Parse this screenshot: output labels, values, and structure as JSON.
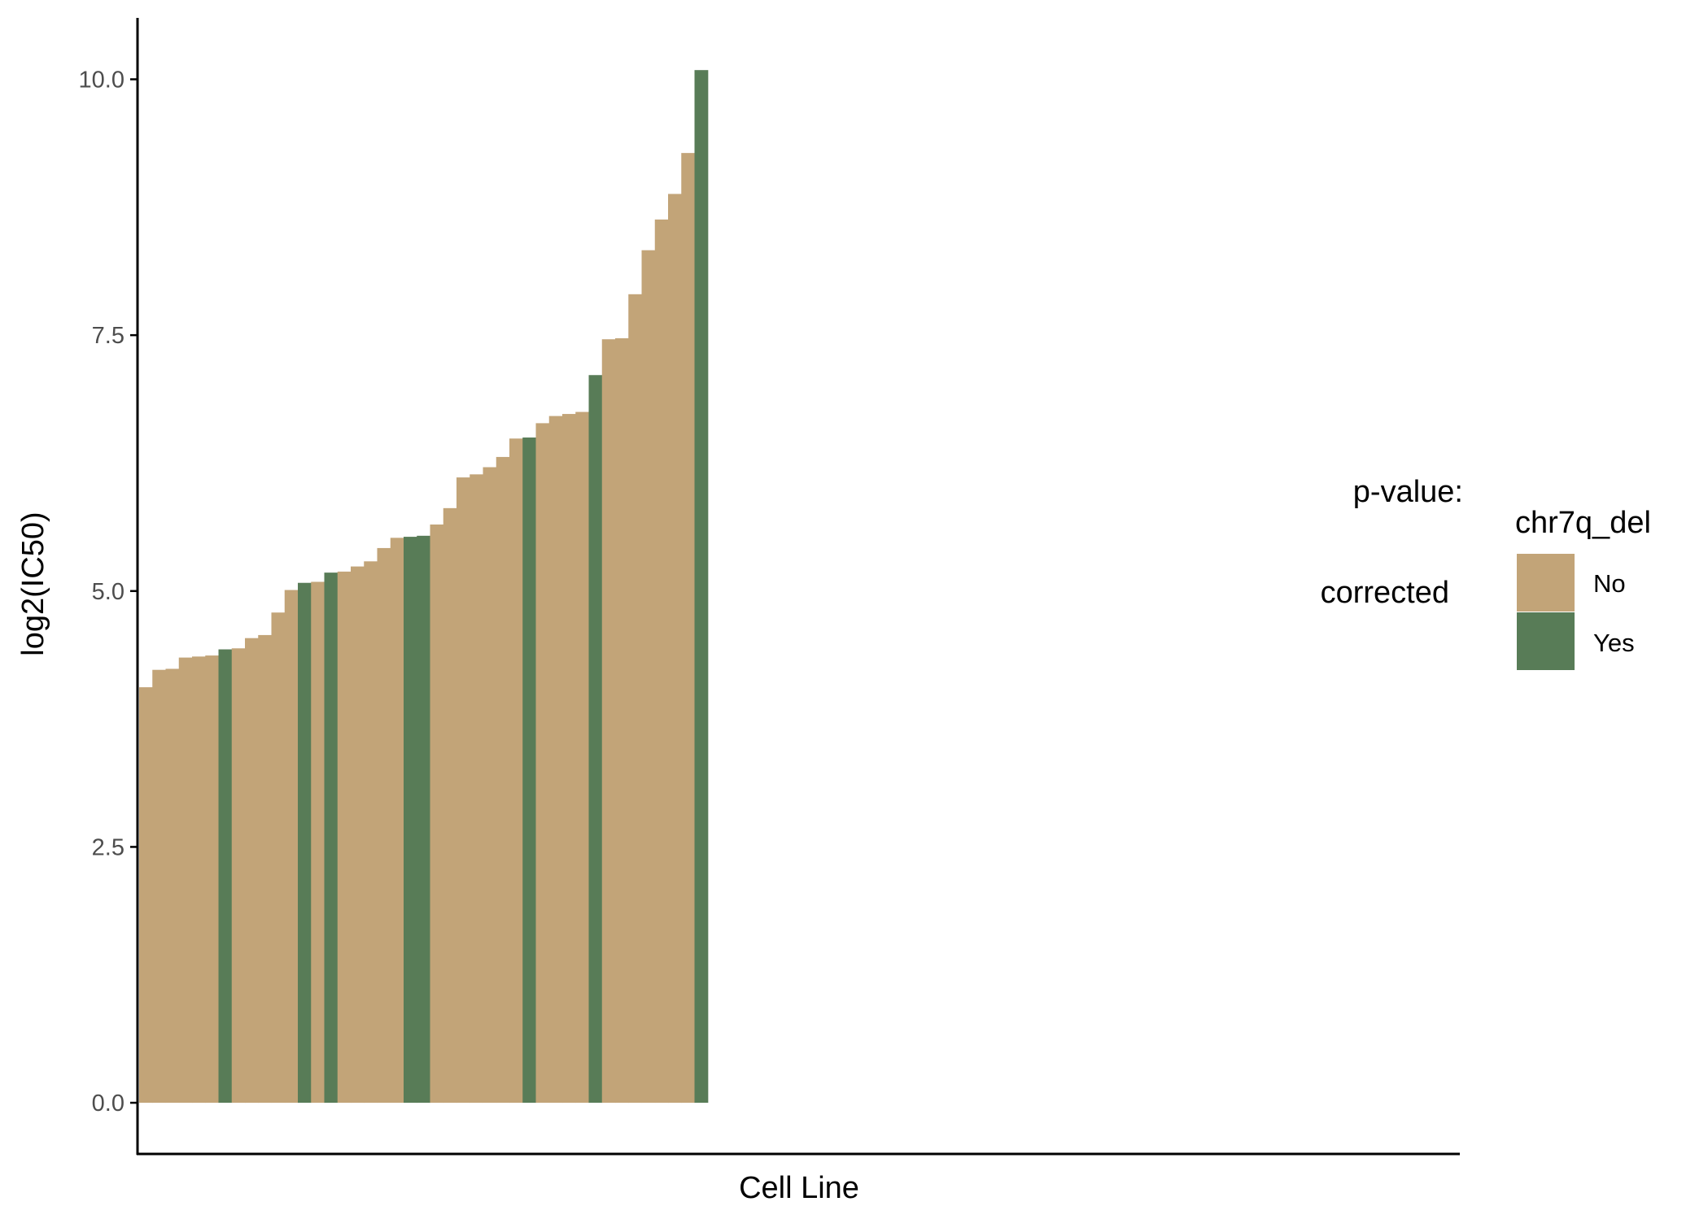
{
  "chart_data": {
    "type": "bar",
    "xlabel": "Cell Line",
    "ylabel": "log2(IC50)",
    "ylim": [
      -0.5,
      10.6
    ],
    "yticks": [
      0.0,
      2.5,
      5.0,
      7.5,
      10.0
    ],
    "ytick_labels": [
      "0.0",
      "2.5",
      "5.0",
      "7.5",
      "10.0"
    ],
    "x_slot_count": 100,
    "colors": {
      "No": "#c2a478",
      "Yes": "#587c57"
    },
    "annotation": {
      "line1": "p-value:",
      "line2": "corrected"
    },
    "legend": {
      "title": "chr7q_del",
      "position": "right",
      "entries": [
        {
          "label": "No",
          "color": "#c2a478"
        },
        {
          "label": "Yes",
          "color": "#587c57"
        }
      ]
    },
    "bars": [
      {
        "value": 4.06,
        "group": "No"
      },
      {
        "value": 4.23,
        "group": "No"
      },
      {
        "value": 4.24,
        "group": "No"
      },
      {
        "value": 4.35,
        "group": "No"
      },
      {
        "value": 4.36,
        "group": "No"
      },
      {
        "value": 4.37,
        "group": "No"
      },
      {
        "value": 4.43,
        "group": "Yes"
      },
      {
        "value": 4.44,
        "group": "No"
      },
      {
        "value": 4.54,
        "group": "No"
      },
      {
        "value": 4.57,
        "group": "No"
      },
      {
        "value": 4.79,
        "group": "No"
      },
      {
        "value": 5.01,
        "group": "No"
      },
      {
        "value": 5.08,
        "group": "Yes"
      },
      {
        "value": 5.09,
        "group": "No"
      },
      {
        "value": 5.18,
        "group": "Yes"
      },
      {
        "value": 5.19,
        "group": "No"
      },
      {
        "value": 5.24,
        "group": "No"
      },
      {
        "value": 5.29,
        "group": "No"
      },
      {
        "value": 5.42,
        "group": "No"
      },
      {
        "value": 5.52,
        "group": "No"
      },
      {
        "value": 5.53,
        "group": "Yes"
      },
      {
        "value": 5.54,
        "group": "Yes"
      },
      {
        "value": 5.65,
        "group": "No"
      },
      {
        "value": 5.81,
        "group": "No"
      },
      {
        "value": 6.11,
        "group": "No"
      },
      {
        "value": 6.14,
        "group": "No"
      },
      {
        "value": 6.21,
        "group": "No"
      },
      {
        "value": 6.31,
        "group": "No"
      },
      {
        "value": 6.49,
        "group": "No"
      },
      {
        "value": 6.5,
        "group": "Yes"
      },
      {
        "value": 6.64,
        "group": "No"
      },
      {
        "value": 6.71,
        "group": "No"
      },
      {
        "value": 6.73,
        "group": "No"
      },
      {
        "value": 6.75,
        "group": "No"
      },
      {
        "value": 7.11,
        "group": "Yes"
      },
      {
        "value": 7.46,
        "group": "No"
      },
      {
        "value": 7.47,
        "group": "No"
      },
      {
        "value": 7.9,
        "group": "No"
      },
      {
        "value": 8.33,
        "group": "No"
      },
      {
        "value": 8.63,
        "group": "No"
      },
      {
        "value": 8.88,
        "group": "No"
      },
      {
        "value": 9.28,
        "group": "No"
      },
      {
        "value": 10.09,
        "group": "Yes"
      }
    ]
  }
}
